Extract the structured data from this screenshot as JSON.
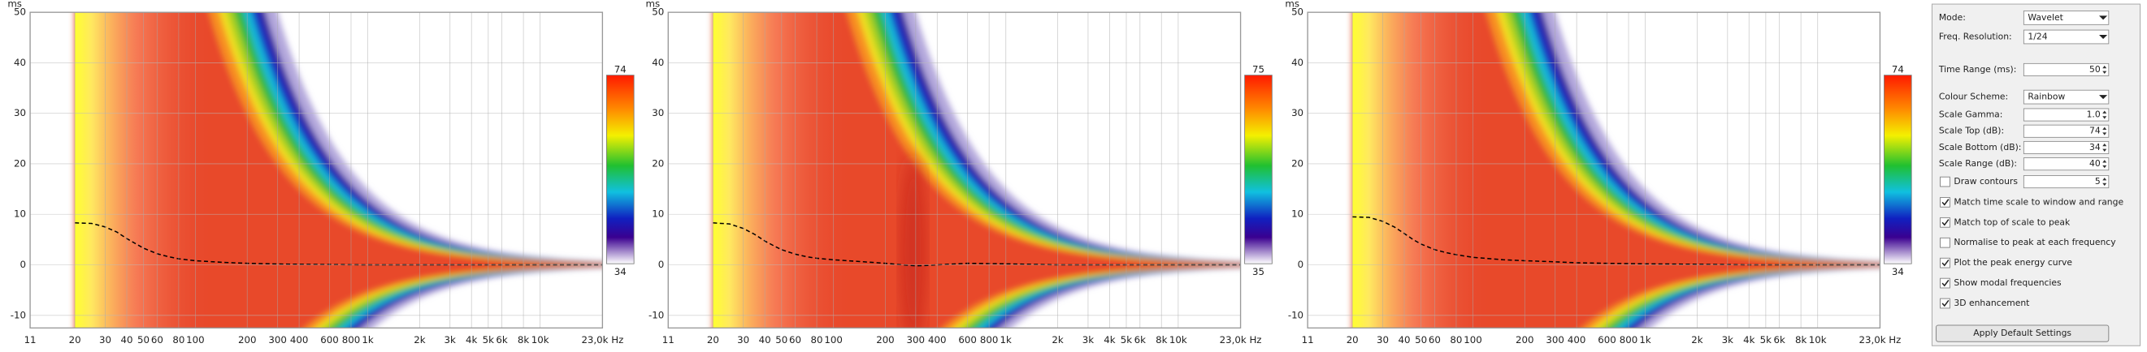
{
  "chart_data": [
    {
      "type": "heatmap",
      "y_label": "ms",
      "xlim": [
        11,
        23000
      ],
      "ylim": [
        -12.5,
        50
      ],
      "log_x": true,
      "grid": true,
      "xticks": [
        11,
        20,
        30,
        40,
        50,
        60,
        80,
        100,
        200,
        300,
        400,
        600,
        800,
        {
          "value": 1000,
          "label": "1k"
        },
        {
          "value": 2000,
          "label": "2k"
        },
        {
          "value": 3000,
          "label": "3k"
        },
        {
          "value": 4000,
          "label": "4k"
        },
        {
          "value": 5000,
          "label": "5k"
        },
        {
          "value": 6000,
          "label": "6k"
        },
        {
          "value": 8000,
          "label": "8k"
        },
        {
          "value": 10000,
          "label": "10k"
        },
        {
          "value": 23000,
          "label": "23,0k Hz"
        }
      ],
      "yticks": [
        -10,
        0,
        10,
        20,
        30,
        40,
        50
      ],
      "colorbar_max": 74,
      "colorbar_min": 34,
      "x": [
        20,
        25,
        30,
        35,
        40,
        45,
        50,
        60,
        70,
        80,
        100,
        150,
        200,
        300,
        400,
        600,
        1000,
        2000,
        5000,
        23000
      ],
      "values": [
        8.3,
        8.2,
        7.5,
        6.5,
        5.2,
        4.2,
        3.3,
        2.2,
        1.6,
        1.2,
        0.8,
        0.45,
        0.3,
        0.15,
        0.1,
        0.05,
        0,
        0,
        0,
        0
      ]
    },
    {
      "type": "heatmap",
      "y_label": "ms",
      "xlim": [
        11,
        23000
      ],
      "ylim": [
        -12.5,
        50
      ],
      "log_x": true,
      "grid": true,
      "xticks": [
        11,
        20,
        30,
        40,
        50,
        60,
        80,
        100,
        200,
        300,
        400,
        600,
        800,
        {
          "value": 1000,
          "label": "1k"
        },
        {
          "value": 2000,
          "label": "2k"
        },
        {
          "value": 3000,
          "label": "3k"
        },
        {
          "value": 4000,
          "label": "4k"
        },
        {
          "value": 5000,
          "label": "5k"
        },
        {
          "value": 6000,
          "label": "6k"
        },
        {
          "value": 8000,
          "label": "8k"
        },
        {
          "value": 10000,
          "label": "10k"
        },
        {
          "value": 23000,
          "label": "23,0k Hz"
        }
      ],
      "yticks": [
        -10,
        0,
        10,
        20,
        30,
        40,
        50
      ],
      "colorbar_max": 75,
      "colorbar_min": 35,
      "x": [
        20,
        25,
        30,
        35,
        40,
        45,
        50,
        60,
        70,
        80,
        100,
        150,
        200,
        250,
        300,
        350,
        400,
        600,
        1000,
        2000,
        5000,
        23000
      ],
      "values": [
        8.3,
        8.1,
        7.2,
        6,
        4.7,
        3.8,
        3,
        2.1,
        1.6,
        1.3,
        1,
        0.6,
        0.3,
        0,
        -0.2,
        -0.1,
        0,
        0.3,
        0.2,
        0,
        0,
        0
      ]
    },
    {
      "type": "heatmap",
      "y_label": "ms",
      "xlim": [
        11,
        23000
      ],
      "ylim": [
        -12.5,
        50
      ],
      "log_x": true,
      "grid": true,
      "xticks": [
        11,
        20,
        30,
        40,
        50,
        60,
        80,
        100,
        200,
        300,
        400,
        600,
        800,
        {
          "value": 1000,
          "label": "1k"
        },
        {
          "value": 2000,
          "label": "2k"
        },
        {
          "value": 3000,
          "label": "3k"
        },
        {
          "value": 4000,
          "label": "4k"
        },
        {
          "value": 5000,
          "label": "5k"
        },
        {
          "value": 6000,
          "label": "6k"
        },
        {
          "value": 8000,
          "label": "8k"
        },
        {
          "value": 10000,
          "label": "10k"
        },
        {
          "value": 23000,
          "label": "23,0k Hz"
        }
      ],
      "yticks": [
        -10,
        0,
        10,
        20,
        30,
        40,
        50
      ],
      "colorbar_max": 74,
      "colorbar_min": 34,
      "x": [
        20,
        25,
        30,
        35,
        40,
        45,
        50,
        60,
        70,
        80,
        100,
        150,
        200,
        300,
        400,
        600,
        1000,
        2000,
        4000,
        23000
      ],
      "values": [
        9.5,
        9.4,
        8.6,
        7.5,
        6.2,
        5,
        4.1,
        3,
        2.4,
        2,
        1.5,
        1,
        0.8,
        0.6,
        0.4,
        0.3,
        0.2,
        0.1,
        0,
        0
      ]
    }
  ],
  "panel": {
    "mode": {
      "label": "Mode:",
      "value": "Wavelet"
    },
    "freq_resolution": {
      "label": "Freq. Resolution:",
      "value": "1/24"
    },
    "time_range": {
      "label": "Time Range (ms):",
      "value": "50"
    },
    "colour_scheme": {
      "label": "Colour Scheme:",
      "value": "Rainbow"
    },
    "spinners": [
      {
        "label": "Scale Gamma:",
        "value": "1.0"
      },
      {
        "label": "Scale Top (dB):",
        "value": "74"
      },
      {
        "label": "Scale Bottom (dB):",
        "value": "34"
      },
      {
        "label": "Scale Range (dB):",
        "value": "40"
      }
    ],
    "draw_contours": {
      "label": "Draw contours",
      "checked": false,
      "value": "5"
    },
    "checkboxes": [
      {
        "label": "Match time scale to window and range",
        "checked": true
      },
      {
        "label": "Match top of scale to peak",
        "checked": true
      },
      {
        "label": "Normalise to peak at each frequency",
        "checked": false
      },
      {
        "label": "Plot the peak energy curve",
        "checked": true
      },
      {
        "label": "Show modal frequencies",
        "checked": true
      },
      {
        "label": "3D enhancement",
        "checked": true
      }
    ],
    "button": "Apply Default Settings"
  }
}
